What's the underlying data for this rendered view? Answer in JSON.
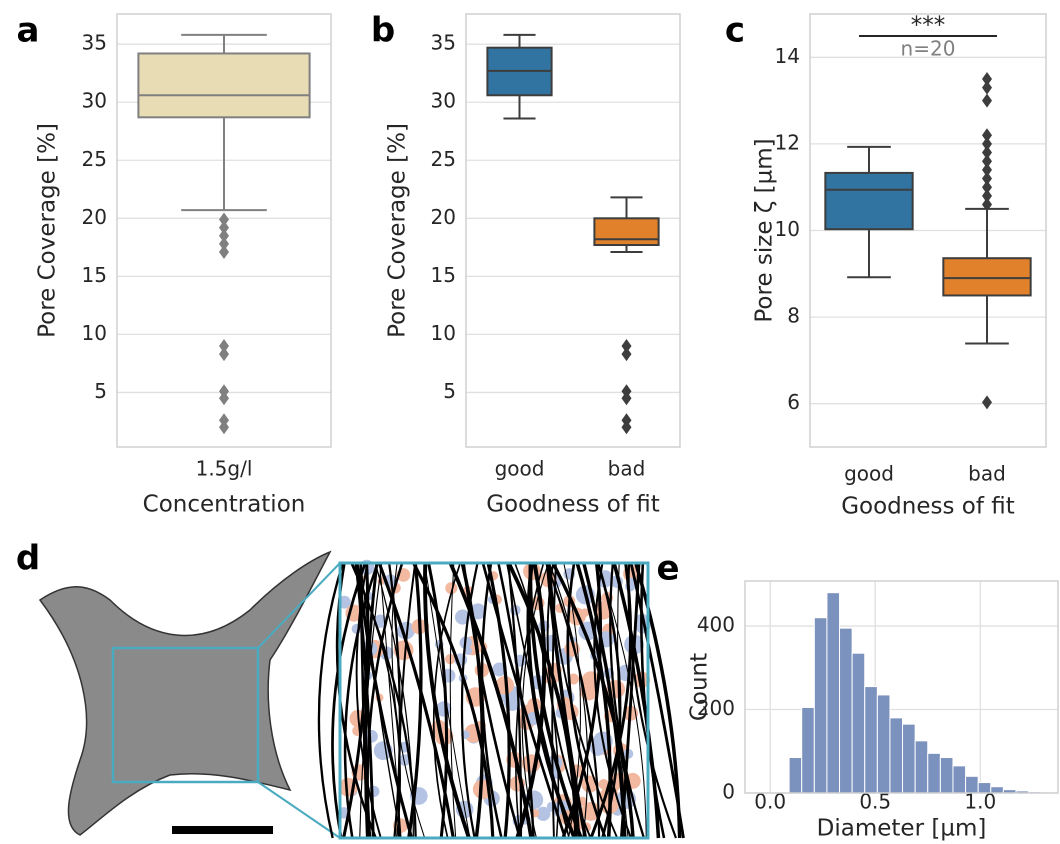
{
  "panel_labels": [
    "a",
    "b",
    "c",
    "d",
    "e"
  ],
  "chart_data": [
    {
      "type": "box",
      "ylabel": "Pore Coverage [%]",
      "xlabel": "Concentration",
      "categories": [
        "1.5g/l"
      ],
      "boxes": [
        {
          "whislo": 20.7,
          "q1": 28.7,
          "med": 30.6,
          "q3": 34.2,
          "whishi": 35.8,
          "fliers": [
            19.9,
            19.2,
            18.5,
            17.8,
            17.1,
            9.0,
            8.3,
            5.1,
            4.5,
            2.6,
            2.0
          ],
          "color": "#e8dcb5"
        }
      ],
      "edge_color": "#808080",
      "ylim": [
        0.3,
        37.6
      ],
      "yticks": [
        5,
        10,
        15,
        20,
        25,
        30,
        35
      ],
      "grid": true
    },
    {
      "type": "box",
      "ylabel": "Pore Coverage [%]",
      "xlabel": "Goodness of fit",
      "categories": [
        "good",
        "bad"
      ],
      "boxes": [
        {
          "whislo": 28.6,
          "q1": 30.6,
          "med": 32.7,
          "q3": 34.7,
          "whishi": 35.8,
          "fliers": [],
          "color": "#3274a1"
        },
        {
          "whislo": 17.1,
          "q1": 17.7,
          "med": 18.2,
          "q3": 20.0,
          "whishi": 21.8,
          "fliers": [
            9.0,
            8.3,
            5.1,
            4.5,
            2.6,
            2.0
          ],
          "color": "#e1812c"
        }
      ],
      "edge_color": "#3d3d3d",
      "ylim": [
        0.3,
        37.6
      ],
      "yticks": [
        5,
        10,
        15,
        20,
        25,
        30,
        35
      ],
      "grid": true
    },
    {
      "type": "box",
      "ylabel": "Pore size ζ [µm]",
      "xlabel": "Goodness of fit",
      "categories": [
        "good",
        "bad"
      ],
      "boxes": [
        {
          "whislo": 8.92,
          "q1": 10.03,
          "med": 10.94,
          "q3": 11.33,
          "whishi": 11.93,
          "fliers": [],
          "color": "#3274a1"
        },
        {
          "whislo": 7.39,
          "q1": 8.5,
          "med": 8.9,
          "q3": 9.36,
          "whishi": 10.5,
          "fliers": [
            13.5,
            13.3,
            13.0,
            12.2,
            12.0,
            11.8,
            11.6,
            11.4,
            11.2,
            11.0,
            10.8,
            10.6,
            6.03
          ],
          "color": "#e1812c"
        }
      ],
      "edge_color": "#3d3d3d",
      "ylim": [
        5,
        15
      ],
      "yticks": [
        6,
        8,
        10,
        12,
        14
      ],
      "grid": true,
      "annotations": [
        "***",
        "n=20"
      ]
    },
    {
      "type": "histogram",
      "xlabel": "Diameter [µm]",
      "ylabel": "Count",
      "bins": [
        0.09,
        0.15,
        0.21,
        0.27,
        0.33,
        0.39,
        0.45,
        0.51,
        0.57,
        0.63,
        0.69,
        0.75,
        0.81,
        0.87,
        0.93,
        0.99,
        1.05,
        1.11,
        1.17,
        1.23,
        1.29
      ],
      "counts": [
        85,
        205,
        420,
        480,
        395,
        335,
        255,
        235,
        180,
        165,
        125,
        95,
        85,
        65,
        40,
        25,
        15,
        8,
        5,
        3
      ],
      "color": "#7b91be",
      "xlim": [
        -0.12,
        1.37
      ],
      "xticks": [
        {
          "value": 0,
          "label": "0.0"
        },
        0.5,
        {
          "value": 1,
          "label": "1.0"
        }
      ],
      "ylim": [
        0,
        508
      ],
      "yticks": [
        0,
        200,
        400
      ],
      "grid": true
    }
  ]
}
